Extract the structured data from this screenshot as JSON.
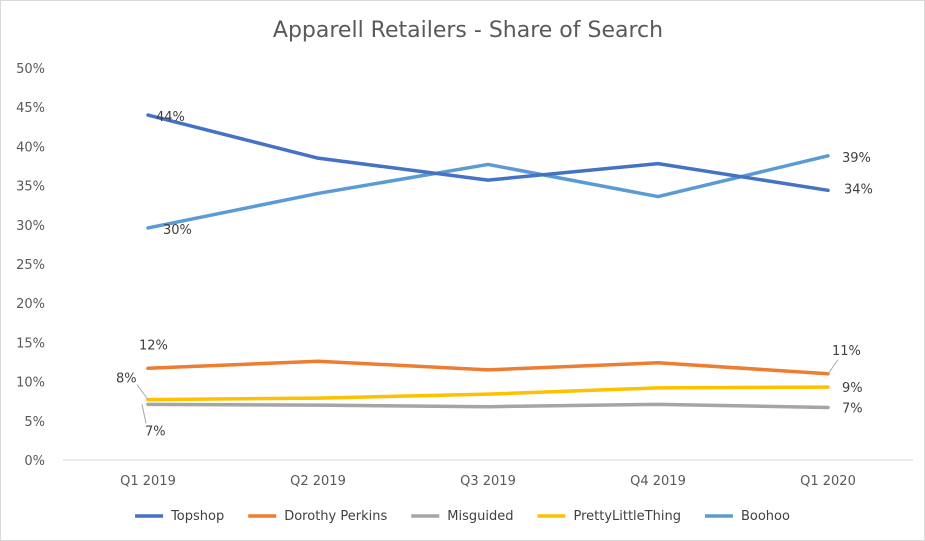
{
  "chart_data": {
    "type": "line",
    "title": "Apparell Retailers - Share of Search",
    "categories": [
      "Q1 2019",
      "Q2 2019",
      "Q3 2019",
      "Q4 2019",
      "Q1 2020"
    ],
    "y_ticks": [
      "0%",
      "5%",
      "10%",
      "15%",
      "20%",
      "25%",
      "30%",
      "35%",
      "40%",
      "45%",
      "50%"
    ],
    "ylim": [
      0,
      50
    ],
    "grid": false,
    "legend": "bottom",
    "series": [
      {
        "name": "Topshop",
        "color": "#4472c4",
        "values": [
          44,
          38.5,
          35.7,
          37.8,
          34.4
        ]
      },
      {
        "name": "Dorothy Perkins",
        "color": "#ed7d31",
        "values": [
          11.7,
          12.6,
          11.5,
          12.4,
          11
        ]
      },
      {
        "name": "Misguided",
        "color": "#a5a5a5",
        "values": [
          7.1,
          7,
          6.8,
          7.1,
          6.7
        ]
      },
      {
        "name": "PrettyLittleThing",
        "color": "#ffc000",
        "values": [
          7.7,
          7.9,
          8.4,
          9.2,
          9.3
        ]
      },
      {
        "name": "Boohoo",
        "color": "#5b9bd5",
        "values": [
          29.6,
          34,
          37.7,
          33.6,
          38.8
        ]
      }
    ],
    "data_labels": [
      {
        "series": 0,
        "point": 0,
        "text": "44%"
      },
      {
        "series": 0,
        "point": 4,
        "text": "34%"
      },
      {
        "series": 4,
        "point": 0,
        "text": "30%"
      },
      {
        "series": 4,
        "point": 4,
        "text": "39%"
      },
      {
        "series": 1,
        "point": 0,
        "text": "12%"
      },
      {
        "series": 1,
        "point": 4,
        "text": "11%"
      },
      {
        "series": 3,
        "point": 0,
        "text": "8%"
      },
      {
        "series": 3,
        "point": 4,
        "text": "9%"
      },
      {
        "series": 2,
        "point": 0,
        "text": "7%"
      },
      {
        "series": 2,
        "point": 4,
        "text": "7%"
      }
    ]
  }
}
